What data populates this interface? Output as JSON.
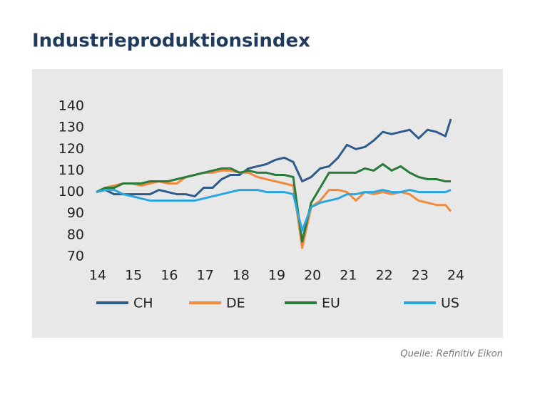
{
  "chart_data": {
    "type": "line",
    "title": "Industrieproduktionsindex",
    "source": "Quelle: Refinitiv Eikon",
    "x": [
      14,
      14.25,
      14.5,
      14.75,
      15,
      15.25,
      15.5,
      15.75,
      16,
      16.25,
      16.5,
      16.75,
      17,
      17.25,
      17.5,
      17.75,
      18,
      18.25,
      18.5,
      18.75,
      19,
      19.25,
      19.5,
      19.75,
      20,
      20.25,
      20.5,
      20.75,
      21,
      21.25,
      21.5,
      21.75,
      22,
      22.25,
      22.5,
      22.75,
      23,
      23.25,
      23.5,
      23.75,
      23.9
    ],
    "series": [
      {
        "name": "CH",
        "color": "#2e5b8a",
        "values": [
          100,
          101,
          99,
          99,
          99,
          99,
          99,
          101,
          100,
          99,
          99,
          98,
          102,
          102,
          106,
          108,
          108,
          111,
          112,
          113,
          115,
          116,
          114,
          105,
          107,
          111,
          112,
          116,
          122,
          120,
          121,
          124,
          128,
          127,
          128,
          129,
          125,
          129,
          128,
          126,
          134
        ]
      },
      {
        "name": "DE",
        "color": "#f08a3c",
        "values": [
          100,
          102,
          103,
          104,
          104,
          103,
          104,
          105,
          104,
          104,
          107,
          108,
          109,
          109,
          110,
          110,
          109,
          109,
          107,
          106,
          105,
          104,
          103,
          74,
          93,
          96,
          101,
          101,
          100,
          96,
          100,
          99,
          100,
          99,
          100,
          99,
          96,
          95,
          94,
          94,
          91
        ]
      },
      {
        "name": "EU",
        "color": "#2a7a3b",
        "values": [
          100,
          102,
          102,
          104,
          104,
          104,
          105,
          105,
          105,
          106,
          107,
          108,
          109,
          110,
          111,
          111,
          109,
          110,
          109,
          109,
          108,
          108,
          107,
          77,
          95,
          102,
          109,
          109,
          109,
          109,
          111,
          110,
          113,
          110,
          112,
          109,
          107,
          106,
          106,
          105,
          105
        ]
      },
      {
        "name": "US",
        "color": "#2aa6df",
        "values": [
          100,
          101,
          101,
          99,
          98,
          97,
          96,
          96,
          96,
          96,
          96,
          96,
          97,
          98,
          99,
          100,
          101,
          101,
          101,
          100,
          100,
          100,
          99,
          82,
          93,
          95,
          96,
          97,
          99,
          99,
          100,
          100,
          101,
          100,
          100,
          101,
          100,
          100,
          100,
          100,
          101
        ]
      }
    ],
    "xlim": [
      14,
      24
    ],
    "xticks": [
      14,
      15,
      16,
      17,
      18,
      19,
      20,
      21,
      22,
      23,
      24
    ],
    "ylim": [
      70,
      140
    ],
    "yticks": [
      70,
      80,
      90,
      100,
      110,
      120,
      130,
      140
    ],
    "grid": false,
    "legend": "bottom"
  }
}
